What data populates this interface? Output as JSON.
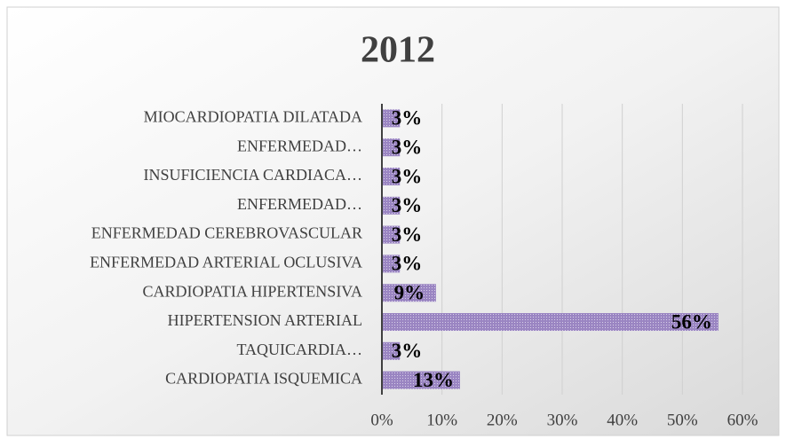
{
  "chart_data": {
    "type": "bar",
    "orientation": "horizontal",
    "title": "2012",
    "categories": [
      "MIOCARDIOPATIA DILATADA",
      "ENFERMEDAD…",
      "INSUFICIENCIA CARDIACA…",
      "ENFERMEDAD…",
      "ENFERMEDAD CEREBROVASCULAR",
      "ENFERMEDAD ARTERIAL OCLUSIVA",
      "CARDIOPATIA HIPERTENSIVA",
      "HIPERTENSION ARTERIAL",
      "TAQUICARDIA…",
      "CARDIOPATIA ISQUEMICA"
    ],
    "values": [
      3,
      3,
      3,
      3,
      3,
      3,
      9,
      56,
      3,
      13
    ],
    "value_labels": [
      "3%",
      "3%",
      "3%",
      "3%",
      "3%",
      "3%",
      "9%",
      "56%",
      "3%",
      "13%"
    ],
    "color": "#9a85c2",
    "xlim": [
      0,
      60
    ],
    "xticks": [
      {
        "value": 0,
        "label": "0%"
      },
      {
        "value": 10,
        "label": "10%"
      },
      {
        "value": 20,
        "label": "20%"
      },
      {
        "value": 30,
        "label": "30%"
      },
      {
        "value": 40,
        "label": "40%"
      },
      {
        "value": 50,
        "label": "50%"
      },
      {
        "value": 60,
        "label": "60%"
      }
    ],
    "grid": true
  }
}
